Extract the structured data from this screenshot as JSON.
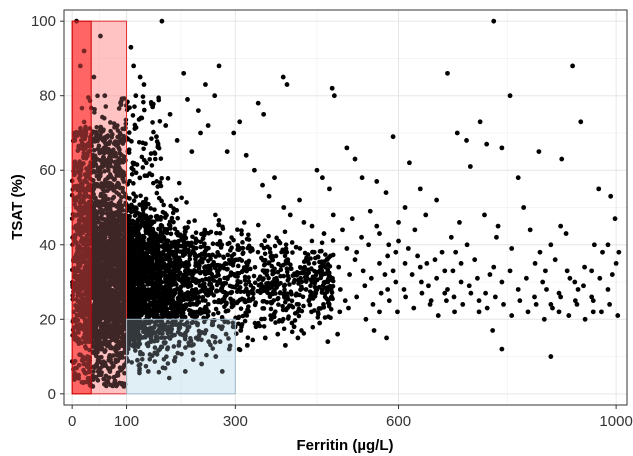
{
  "chart_data": {
    "type": "scatter",
    "title": "",
    "xlabel": "Ferritin (µg/L)",
    "ylabel": "TSAT (%)",
    "xlim": [
      -15,
      1020
    ],
    "ylim": [
      -3,
      103
    ],
    "grid": true,
    "x_ticks": [
      {
        "value": 0,
        "label": "0"
      },
      {
        "value": 100,
        "label": "100"
      },
      {
        "value": 300,
        "label": "300"
      },
      {
        "value": 600,
        "label": "600"
      },
      {
        "value": 1000,
        "label": "1000"
      }
    ],
    "x_minor_gridlines": [
      50,
      200,
      450,
      800
    ],
    "y_ticks": [
      {
        "value": 0,
        "label": "0"
      },
      {
        "value": 20,
        "label": "20"
      },
      {
        "value": 40,
        "label": "40"
      },
      {
        "value": 60,
        "label": "60"
      },
      {
        "value": 80,
        "label": "80"
      },
      {
        "value": 100,
        "label": "100"
      }
    ],
    "y_minor_gridlines": [
      10,
      30,
      50,
      70,
      90
    ],
    "highlight_regions": [
      {
        "x": [
          0,
          100
        ],
        "y": [
          0,
          100
        ],
        "fill": "#ff9a9a",
        "stroke": "#e03030",
        "opacity": 0.45
      },
      {
        "x": [
          0,
          35
        ],
        "y": [
          0,
          100
        ],
        "fill": "#ff2a2a",
        "stroke": "#cc0000",
        "opacity": 0.55
      },
      {
        "x": [
          100,
          300
        ],
        "y": [
          0,
          20
        ],
        "fill": "#c9e2f0",
        "stroke": "#9fb9c9",
        "opacity": 0.45
      }
    ],
    "point_color": "#000000",
    "points": [
      [
        8,
        100
      ],
      [
        52,
        96
      ],
      [
        165,
        100
      ],
      [
        775,
        100
      ],
      [
        15,
        88
      ],
      [
        40,
        85
      ],
      [
        60,
        80
      ],
      [
        22,
        92
      ],
      [
        270,
        88
      ],
      [
        388,
        85
      ],
      [
        395,
        83
      ],
      [
        478,
        82
      ],
      [
        482,
        80
      ],
      [
        690,
        86
      ],
      [
        805,
        80
      ],
      [
        920,
        88
      ],
      [
        935,
        73
      ],
      [
        750,
        73
      ],
      [
        762,
        67
      ],
      [
        858,
        65
      ],
      [
        590,
        69
      ],
      [
        620,
        62
      ],
      [
        708,
        70
      ],
      [
        725,
        68
      ],
      [
        732,
        61
      ],
      [
        790,
        66
      ],
      [
        820,
        58
      ],
      [
        830,
        50
      ],
      [
        900,
        63
      ],
      [
        990,
        53
      ],
      [
        998,
        47
      ],
      [
        968,
        55
      ],
      [
        898,
        45
      ],
      [
        908,
        43
      ],
      [
        880,
        40
      ],
      [
        860,
        38
      ],
      [
        780,
        42
      ],
      [
        768,
        32
      ],
      [
        740,
        36
      ],
      [
        705,
        38
      ],
      [
        715,
        30
      ],
      [
        690,
        28
      ],
      [
        702,
        26
      ],
      [
        748,
        22
      ],
      [
        773,
        17
      ],
      [
        790,
        12
      ],
      [
        880,
        10
      ],
      [
        895,
        22
      ],
      [
        872,
        28
      ],
      [
        924,
        30
      ],
      [
        930,
        28
      ],
      [
        960,
        40
      ],
      [
        985,
        40
      ],
      [
        1005,
        38
      ],
      [
        958,
        22
      ],
      [
        955,
        33
      ],
      [
        642,
        30
      ],
      [
        660,
        25
      ],
      [
        680,
        38
      ],
      [
        630,
        44
      ],
      [
        612,
        50
      ],
      [
        600,
        46
      ],
      [
        560,
        45
      ],
      [
        545,
        40
      ],
      [
        523,
        38
      ],
      [
        510,
        32
      ],
      [
        502,
        25
      ],
      [
        492,
        22
      ],
      [
        488,
        16
      ],
      [
        470,
        14
      ],
      [
        455,
        19
      ],
      [
        440,
        22
      ],
      [
        430,
        28
      ],
      [
        470,
        30
      ],
      [
        415,
        15
      ],
      [
        408,
        18
      ],
      [
        540,
        20
      ],
      [
        555,
        17
      ],
      [
        578,
        15
      ],
      [
        565,
        22
      ],
      [
        640,
        55
      ],
      [
        650,
        48
      ],
      [
        670,
        52
      ],
      [
        595,
        38
      ],
      [
        590,
        33
      ],
      [
        580,
        28
      ],
      [
        575,
        32
      ],
      [
        612,
        35
      ],
      [
        450,
        60
      ],
      [
        460,
        58
      ],
      [
        473,
        55
      ],
      [
        505,
        66
      ],
      [
        520,
        63
      ],
      [
        533,
        58
      ],
      [
        560,
        57
      ],
      [
        577,
        54
      ],
      [
        342,
        78
      ],
      [
        352,
        75
      ],
      [
        308,
        73
      ],
      [
        297,
        70
      ],
      [
        285,
        65
      ],
      [
        262,
        80
      ],
      [
        245,
        83
      ],
      [
        232,
        76
      ],
      [
        205,
        86
      ],
      [
        212,
        79
      ],
      [
        172,
        72
      ],
      [
        180,
        75
      ],
      [
        155,
        69
      ],
      [
        148,
        77
      ],
      [
        132,
        83
      ],
      [
        125,
        85
      ],
      [
        108,
        93
      ],
      [
        113,
        88
      ],
      [
        117,
        80
      ],
      [
        128,
        74
      ],
      [
        193,
        68
      ],
      [
        220,
        65
      ],
      [
        236,
        70
      ],
      [
        250,
        72
      ],
      [
        320,
        64
      ],
      [
        335,
        60
      ],
      [
        350,
        56
      ],
      [
        362,
        53
      ],
      [
        372,
        58
      ],
      [
        389,
        50
      ],
      [
        401,
        48
      ],
      [
        418,
        52
      ],
      [
        426,
        46
      ],
      [
        441,
        45
      ],
      [
        463,
        43
      ],
      [
        480,
        48
      ],
      [
        497,
        44
      ],
      [
        515,
        47
      ],
      [
        532,
        42
      ],
      [
        548,
        49
      ],
      [
        565,
        43
      ],
      [
        582,
        40
      ],
      [
        600,
        41
      ],
      [
        618,
        39
      ],
      [
        635,
        37
      ],
      [
        652,
        35
      ],
      [
        667,
        36
      ],
      [
        685,
        33
      ],
      [
        697,
        42
      ],
      [
        712,
        46
      ],
      [
        726,
        40
      ],
      [
        758,
        48
      ],
      [
        783,
        45
      ],
      [
        808,
        39
      ],
      [
        842,
        44
      ],
      [
        851,
        35
      ],
      [
        870,
        33
      ],
      [
        888,
        36
      ],
      [
        915,
        31
      ],
      [
        942,
        34
      ],
      [
        975,
        38
      ],
      [
        993,
        32
      ],
      [
        145,
        14
      ],
      [
        152,
        11
      ],
      [
        167,
        7
      ],
      [
        175,
        12
      ],
      [
        188,
        9
      ],
      [
        196,
        13
      ],
      [
        208,
        6
      ],
      [
        222,
        11
      ],
      [
        238,
        8
      ],
      [
        251,
        14
      ],
      [
        264,
        10
      ],
      [
        276,
        6
      ],
      [
        289,
        12
      ],
      [
        310,
        17
      ],
      [
        322,
        13
      ],
      [
        338,
        18
      ],
      [
        355,
        15
      ],
      [
        366,
        20
      ],
      [
        378,
        16
      ],
      [
        392,
        13
      ],
      [
        404,
        19
      ],
      [
        112,
        16
      ],
      [
        120,
        9
      ],
      [
        133,
        18
      ],
      [
        140,
        6
      ],
      [
        103,
        12
      ],
      [
        106,
        20
      ],
      [
        128,
        22
      ],
      [
        138,
        19
      ],
      [
        160,
        17
      ],
      [
        183,
        19
      ],
      [
        199,
        16
      ],
      [
        215,
        18
      ],
      [
        228,
        15
      ],
      [
        246,
        17
      ],
      [
        258,
        19
      ],
      [
        272,
        14
      ],
      [
        283,
        16
      ],
      [
        296,
        18
      ],
      [
        430,
        36
      ],
      [
        445,
        38
      ],
      [
        460,
        35
      ],
      [
        475,
        37
      ],
      [
        490,
        34
      ],
      [
        505,
        39
      ],
      [
        520,
        36
      ],
      [
        535,
        33
      ],
      [
        550,
        31
      ],
      [
        565,
        35
      ],
      [
        580,
        37
      ],
      [
        595,
        30
      ],
      [
        610,
        28
      ],
      [
        625,
        32
      ],
      [
        640,
        34
      ],
      [
        655,
        29
      ],
      [
        670,
        31
      ],
      [
        685,
        27
      ],
      [
        700,
        33
      ],
      [
        715,
        35
      ],
      [
        730,
        29
      ],
      [
        745,
        31
      ],
      [
        760,
        27
      ],
      [
        775,
        34
      ],
      [
        790,
        30
      ],
      [
        805,
        33
      ],
      [
        820,
        28
      ],
      [
        835,
        31
      ],
      [
        850,
        26
      ],
      [
        865,
        30
      ],
      [
        880,
        24
      ],
      [
        895,
        27
      ],
      [
        910,
        33
      ],
      [
        925,
        25
      ],
      [
        940,
        29
      ],
      [
        955,
        26
      ],
      [
        970,
        31
      ],
      [
        985,
        28
      ],
      [
        1000,
        35
      ],
      [
        435,
        25
      ],
      [
        448,
        27
      ],
      [
        462,
        24
      ],
      [
        477,
        26
      ],
      [
        493,
        28
      ],
      [
        508,
        23
      ],
      [
        523,
        26
      ],
      [
        538,
        29
      ],
      [
        553,
        24
      ],
      [
        568,
        27
      ],
      [
        583,
        25
      ],
      [
        598,
        22
      ],
      [
        613,
        26
      ],
      [
        628,
        23
      ],
      [
        643,
        27
      ],
      [
        658,
        24
      ],
      [
        673,
        21
      ],
      [
        688,
        25
      ],
      [
        703,
        22
      ],
      [
        718,
        24
      ],
      [
        733,
        27
      ],
      [
        748,
        25
      ],
      [
        763,
        23
      ],
      [
        778,
        26
      ],
      [
        793,
        24
      ],
      [
        808,
        21
      ],
      [
        823,
        25
      ],
      [
        838,
        22
      ],
      [
        853,
        24
      ],
      [
        868,
        20
      ],
      [
        883,
        23
      ],
      [
        898,
        26
      ],
      [
        913,
        21
      ],
      [
        928,
        24
      ],
      [
        943,
        20
      ],
      [
        958,
        25
      ],
      [
        973,
        22
      ],
      [
        988,
        24
      ],
      [
        1003,
        21
      ],
      [
        12,
        5
      ],
      [
        20,
        3
      ],
      [
        28,
        8
      ],
      [
        38,
        2
      ],
      [
        48,
        6
      ],
      [
        58,
        4
      ],
      [
        68,
        9
      ],
      [
        78,
        3
      ],
      [
        88,
        7
      ],
      [
        95,
        2
      ]
    ]
  }
}
